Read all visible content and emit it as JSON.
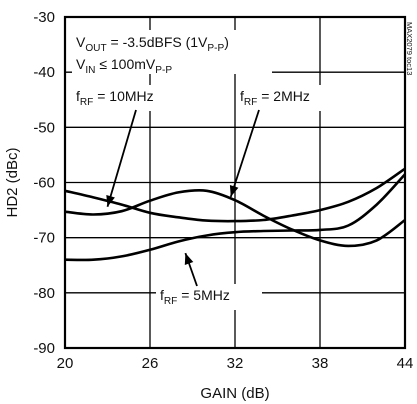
{
  "chart_data": {
    "type": "line",
    "title": "",
    "xlabel": "GAIN (dB)",
    "ylabel": "HD2 (dBc)",
    "xlim": [
      20,
      44
    ],
    "ylim": [
      -90,
      -30
    ],
    "x_ticks": [
      20,
      26,
      32,
      38,
      44
    ],
    "y_ticks": [
      -30,
      -40,
      -50,
      -60,
      -70,
      -80,
      -90
    ],
    "x_tick_labels": [
      "20",
      "26",
      "32",
      "38",
      "44"
    ],
    "y_tick_labels": [
      "-30",
      "-40",
      "-50",
      "-60",
      "-70",
      "-80",
      "-90"
    ],
    "grid": true,
    "watermark": "MAX2079 toc13",
    "conditions": [
      {
        "base": "V",
        "sub": "OUT",
        "text": " = -3.5dBFS (1V",
        "sub2": "P-P",
        "tail": ")"
      },
      {
        "base": "V",
        "sub": "IN",
        "text": " ≤ 100mV",
        "sub2": "P-P",
        "tail": ""
      }
    ],
    "series": [
      {
        "label": {
          "base": "f",
          "sub": "RF",
          "text": " = 10MHz"
        },
        "color": "#000000",
        "x": [
          20,
          22,
          24,
          26,
          28,
          30,
          32,
          34,
          36,
          38,
          40,
          42,
          44
        ],
        "y": [
          -61.5,
          -62.7,
          -64,
          -65.5,
          -66.3,
          -66.9,
          -67,
          -66.8,
          -66,
          -65,
          -63.5,
          -61,
          -57.5
        ]
      },
      {
        "label": {
          "base": "f",
          "sub": "RF",
          "text": " = 2MHz"
        },
        "color": "#000000",
        "x": [
          20,
          22,
          24,
          26,
          28,
          30,
          32,
          34,
          36,
          38,
          40,
          42,
          44
        ],
        "y": [
          -65.3,
          -65.8,
          -65.2,
          -63.3,
          -61.8,
          -61.5,
          -63.2,
          -66,
          -68.5,
          -70.5,
          -71.5,
          -70.5,
          -66.8
        ]
      },
      {
        "label": {
          "base": "f",
          "sub": "RF",
          "text": " = 5MHz"
        },
        "color": "#000000",
        "x": [
          20,
          22,
          24,
          26,
          28,
          30,
          32,
          34,
          36,
          38,
          40,
          42,
          44
        ],
        "y": [
          -74,
          -74,
          -73.4,
          -72.2,
          -70.7,
          -69.6,
          -69,
          -68.8,
          -68.7,
          -68.6,
          -67.8,
          -64,
          -58.5
        ]
      }
    ]
  }
}
